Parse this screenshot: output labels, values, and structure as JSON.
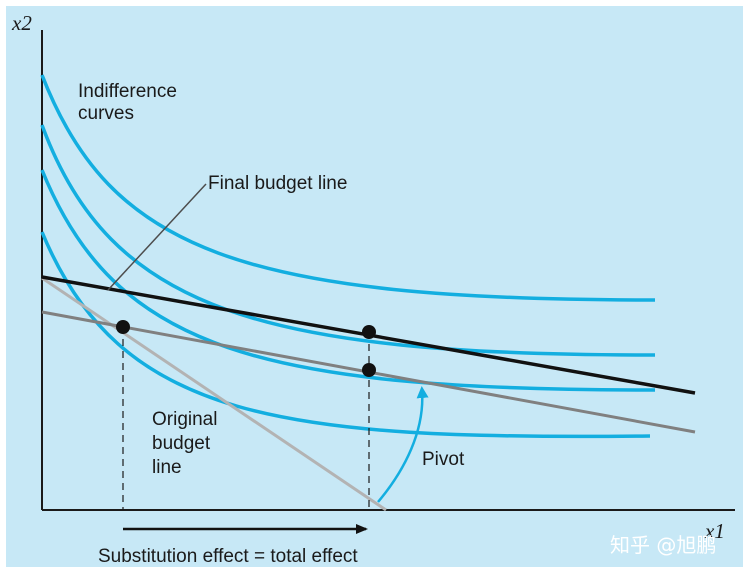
{
  "diagram": {
    "axes": {
      "y_label": "x2",
      "x_label": "x1"
    },
    "labels": {
      "indifference_line1": "Indifference",
      "indifference_line2": "curves",
      "final_budget": "Final budget line",
      "original_line1": "Original",
      "original_line2": "budget",
      "original_line3": "line",
      "pivot": "Pivot",
      "effect": "Substitution effect = total effect"
    },
    "colors": {
      "background": "#c7e8f6",
      "indifference_curve": "#13aee0",
      "final_budget_line": "#111111",
      "pivoted_budget_line": "#808080",
      "original_budget_line": "#b3b3b3",
      "pivot_arrow": "#13aee0"
    }
  },
  "watermark": {
    "text": "知乎 @旭鹏"
  }
}
